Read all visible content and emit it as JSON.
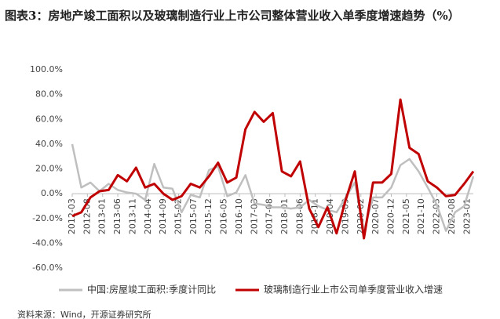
{
  "chart_data": {
    "type": "line",
    "title": "图表3：房地产竣工面积以及玻璃制造行业上市公司整体营业收入单季度增速趋势（%）",
    "source": "资料来源：Wind，开源证券研究所",
    "x": [
      "2012-03",
      "2012-06",
      "2012-09",
      "2012-12",
      "2013-03",
      "2013-06",
      "2013-09",
      "2013-12",
      "2014-03",
      "2014-06",
      "2014-09",
      "2014-12",
      "2015-03",
      "2015-06",
      "2015-09",
      "2015-12",
      "2016-03",
      "2016-06",
      "2016-09",
      "2016-12",
      "2017-03",
      "2017-06",
      "2017-09",
      "2017-12",
      "2018-03",
      "2018-06",
      "2018-09",
      "2018-12",
      "2019-03",
      "2019-06",
      "2019-09",
      "2019-12",
      "2020-03",
      "2020-06",
      "2020-09",
      "2020-12",
      "2021-03",
      "2021-06",
      "2021-09",
      "2021-12",
      "2022-03",
      "2022-06",
      "2022-09",
      "2022-12",
      "2023-03"
    ],
    "series": [
      {
        "name": "中国:房屋竣工面积:季度计同比",
        "color": "#bfbfbf",
        "values": [
          40,
          5,
          9,
          2,
          8,
          3,
          1,
          0,
          -5,
          24,
          5,
          4,
          -15,
          -1,
          -3,
          19,
          22,
          -2,
          1,
          15,
          -8,
          -9,
          -11,
          -11,
          -12,
          -11,
          -5,
          -10,
          -13,
          -15,
          -3,
          9,
          -30,
          -3,
          -3,
          5,
          23,
          28,
          18,
          5,
          -9,
          -30,
          -15,
          -10,
          14
        ]
      },
      {
        "name": "玻璃制造行业上市公司单季度营业收入增速",
        "color": "#c00000",
        "values": [
          -18,
          -15,
          -3,
          2,
          3,
          15,
          10,
          21,
          5,
          8,
          0,
          -5,
          -2,
          8,
          5,
          14,
          25,
          9,
          13,
          52,
          66,
          58,
          65,
          18,
          14,
          26,
          -12,
          -27,
          -11,
          -32,
          -5,
          18,
          -36,
          9,
          9,
          16,
          76,
          37,
          32,
          10,
          5,
          -2,
          -1,
          8,
          18
        ]
      }
    ],
    "xticks": [
      "2012-03",
      "2012-08",
      "2013-01",
      "2013-06",
      "2013-11",
      "2014-04",
      "2014-09",
      "2015-02",
      "2015-07",
      "2015-12",
      "2016-05",
      "2016-10",
      "2017-03",
      "2017-08",
      "2018-01",
      "2018-06",
      "2018-11",
      "2019-04",
      "2019-09",
      "2020-02",
      "2020-07",
      "2020-12",
      "2021-05",
      "2021-10",
      "2022-03",
      "2022-08",
      "2023-01"
    ],
    "xlim": [
      "2012-03",
      "2023-03"
    ],
    "ylim": [
      -60,
      100
    ],
    "yticks": [
      {
        "value": -60,
        "label": "-60.0%"
      },
      {
        "value": -40,
        "label": "-40.0%"
      },
      {
        "value": -20,
        "label": "-20.0%"
      },
      {
        "value": 0,
        "label": "0.0%"
      },
      {
        "value": 20,
        "label": "20.0%"
      },
      {
        "value": 40,
        "label": "40.0%"
      },
      {
        "value": 60,
        "label": "60.0%"
      },
      {
        "value": 80,
        "label": "80.0%"
      },
      {
        "value": 100,
        "label": "100.0%"
      }
    ],
    "legend": "bottom",
    "grid": false
  }
}
